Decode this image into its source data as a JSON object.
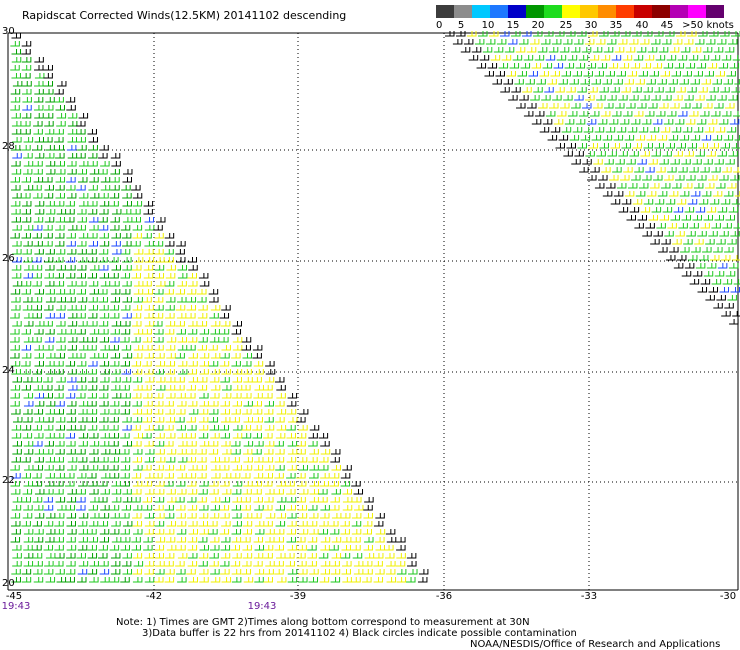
{
  "title": "Rapidscat Corrected Winds(12.5KM) 20141102 descending",
  "legend": {
    "colors": [
      "#3c3c3c",
      "#8c8c8c",
      "#00c8ff",
      "#1e78ff",
      "#0000c8",
      "#009600",
      "#1edc1e",
      "#ffff00",
      "#ffc800",
      "#ff8c00",
      "#ff3c00",
      "#c80000",
      "#8c0000",
      "#b400b4",
      "#ff00ff",
      "#64006e"
    ],
    "labels": [
      "0",
      "5",
      "10",
      "15",
      "20",
      "25",
      "30",
      "35",
      "40",
      "45",
      ">50 knots"
    ]
  },
  "axes": {
    "lat_labels": [
      "30",
      "28",
      "26",
      "24",
      "22",
      "20"
    ],
    "lon_labels": [
      "-45",
      "-42",
      "-39",
      "-36",
      "-33",
      "-30"
    ]
  },
  "times": [
    "19:43",
    "19:43"
  ],
  "notes": {
    "line1": "Note: 1) Times are GMT 2)Times along bottom correspond to measurement at 30N",
    "line2": "3)Data buffer is 22 hrs from 20141102 4) Black circles indicate possible contamination",
    "line3": "NOAA/NESDIS/Office of Research and Applications"
  }
}
